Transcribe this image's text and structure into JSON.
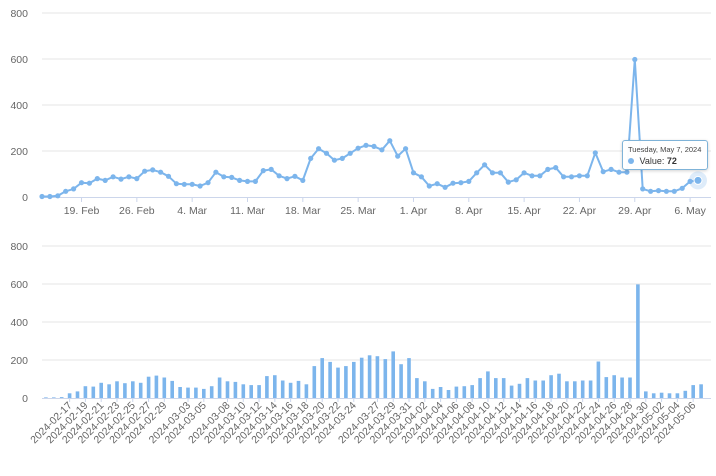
{
  "colors": {
    "series": "#7cb5ec",
    "grid": "#e6e6e6",
    "axis": "#ccd6eb",
    "text": "#666666"
  },
  "tooltip": {
    "date": "Tuesday, May 7, 2024",
    "label": "Value:",
    "value": "72"
  },
  "chart_data": [
    {
      "type": "line",
      "ylim": [
        0,
        800
      ],
      "yticks": [
        0,
        200,
        400,
        600,
        800
      ],
      "x_start": "2024-02-14",
      "x_end": "2024-05-07",
      "xtick_dates": [
        "2024-02-19",
        "2024-02-26",
        "2024-03-04",
        "2024-03-11",
        "2024-03-18",
        "2024-03-25",
        "2024-04-01",
        "2024-04-08",
        "2024-04-15",
        "2024-04-22",
        "2024-04-29",
        "2024-05-06"
      ],
      "xtick_labels": [
        "19. Feb",
        "26. Feb",
        "4. Mar",
        "11. Mar",
        "18. Mar",
        "25. Mar",
        "1. Apr",
        "8. Apr",
        "15. Apr",
        "22. Apr",
        "29. Apr",
        "6. May"
      ],
      "series": [
        {
          "x": [
            "2024-02-14",
            "2024-02-15",
            "2024-02-16",
            "2024-02-17",
            "2024-02-18",
            "2024-02-19",
            "2024-02-20",
            "2024-02-21",
            "2024-02-22",
            "2024-02-23",
            "2024-02-24",
            "2024-02-25",
            "2024-02-26",
            "2024-02-27",
            "2024-02-28",
            "2024-02-29",
            "2024-03-01",
            "2024-03-02",
            "2024-03-03",
            "2024-03-04",
            "2024-03-05",
            "2024-03-06",
            "2024-03-07",
            "2024-03-08",
            "2024-03-09",
            "2024-03-10",
            "2024-03-11",
            "2024-03-12",
            "2024-03-13",
            "2024-03-14",
            "2024-03-15",
            "2024-03-16",
            "2024-03-17",
            "2024-03-18",
            "2024-03-19",
            "2024-03-20",
            "2024-03-21",
            "2024-03-22",
            "2024-03-23",
            "2024-03-24",
            "2024-03-25",
            "2024-03-26",
            "2024-03-27",
            "2024-03-28",
            "2024-03-29",
            "2024-03-30",
            "2024-03-31",
            "2024-04-01",
            "2024-04-02",
            "2024-04-03",
            "2024-04-04",
            "2024-04-05",
            "2024-04-06",
            "2024-04-07",
            "2024-04-08",
            "2024-04-09",
            "2024-04-10",
            "2024-04-11",
            "2024-04-12",
            "2024-04-13",
            "2024-04-14",
            "2024-04-15",
            "2024-04-16",
            "2024-04-17",
            "2024-04-18",
            "2024-04-19",
            "2024-04-20",
            "2024-04-21",
            "2024-04-22",
            "2024-04-23",
            "2024-04-24",
            "2024-04-25",
            "2024-04-26",
            "2024-04-27",
            "2024-04-28",
            "2024-04-29",
            "2024-04-30",
            "2024-05-01",
            "2024-05-02",
            "2024-05-03",
            "2024-05-04",
            "2024-05-05",
            "2024-05-06",
            "2024-05-07"
          ],
          "values": [
            2,
            2,
            5,
            25,
            35,
            62,
            60,
            80,
            72,
            88,
            78,
            88,
            80,
            112,
            118,
            108,
            90,
            58,
            55,
            55,
            48,
            62,
            108,
            88,
            85,
            72,
            68,
            68,
            115,
            120,
            92,
            80,
            90,
            72,
            168,
            210,
            190,
            160,
            168,
            190,
            212,
            225,
            220,
            205,
            245,
            178,
            210,
            105,
            88,
            48,
            58,
            42,
            60,
            62,
            68,
            105,
            140,
            105,
            105,
            65,
            75,
            105,
            92,
            92,
            120,
            128,
            88,
            88,
            92,
            92,
            192,
            110,
            120,
            108,
            108,
            598,
            35,
            25,
            28,
            25,
            25,
            38,
            68,
            72
          ]
        }
      ]
    },
    {
      "type": "bar",
      "ylim": [
        0,
        800
      ],
      "yticks": [
        0,
        200,
        400,
        600,
        800
      ],
      "categories": [
        "2024-02-14",
        "2024-02-15",
        "2024-02-16",
        "2024-02-17",
        "2024-02-18",
        "2024-02-19",
        "2024-02-20",
        "2024-02-21",
        "2024-02-22",
        "2024-02-23",
        "2024-02-24",
        "2024-02-25",
        "2024-02-26",
        "2024-02-27",
        "2024-02-28",
        "2024-02-29",
        "2024-03-01",
        "2024-03-02",
        "2024-03-03",
        "2024-03-04",
        "2024-03-05",
        "2024-03-06",
        "2024-03-07",
        "2024-03-08",
        "2024-03-09",
        "2024-03-10",
        "2024-03-11",
        "2024-03-12",
        "2024-03-13",
        "2024-03-14",
        "2024-03-15",
        "2024-03-16",
        "2024-03-17",
        "2024-03-18",
        "2024-03-19",
        "2024-03-20",
        "2024-03-21",
        "2024-03-22",
        "2024-03-23",
        "2024-03-24",
        "2024-03-25",
        "2024-03-26",
        "2024-03-27",
        "2024-03-28",
        "2024-03-29",
        "2024-03-30",
        "2024-03-31",
        "2024-04-01",
        "2024-04-02",
        "2024-04-03",
        "2024-04-04",
        "2024-04-05",
        "2024-04-06",
        "2024-04-07",
        "2024-04-08",
        "2024-04-09",
        "2024-04-10",
        "2024-04-11",
        "2024-04-12",
        "2024-04-13",
        "2024-04-14",
        "2024-04-15",
        "2024-04-16",
        "2024-04-17",
        "2024-04-18",
        "2024-04-19",
        "2024-04-20",
        "2024-04-21",
        "2024-04-22",
        "2024-04-23",
        "2024-04-24",
        "2024-04-25",
        "2024-04-26",
        "2024-04-27",
        "2024-04-28",
        "2024-04-29",
        "2024-04-30",
        "2024-05-01",
        "2024-05-02",
        "2024-05-03",
        "2024-05-04",
        "2024-05-05",
        "2024-05-06",
        "2024-05-07"
      ],
      "values": [
        2,
        2,
        5,
        25,
        35,
        62,
        60,
        80,
        72,
        88,
        78,
        88,
        80,
        112,
        118,
        108,
        90,
        58,
        55,
        55,
        48,
        62,
        108,
        88,
        85,
        72,
        68,
        68,
        115,
        120,
        92,
        80,
        90,
        72,
        168,
        210,
        190,
        160,
        168,
        190,
        212,
        225,
        220,
        205,
        245,
        178,
        210,
        105,
        88,
        48,
        58,
        42,
        60,
        62,
        68,
        105,
        140,
        105,
        105,
        65,
        75,
        105,
        92,
        92,
        120,
        128,
        88,
        88,
        92,
        92,
        192,
        110,
        120,
        108,
        108,
        598,
        35,
        25,
        28,
        25,
        25,
        38,
        68,
        72
      ],
      "xtick_labels": [
        "2024-02-17",
        "2024-02-19",
        "2024-02-21",
        "2024-02-23",
        "2024-02-25",
        "2024-02-27",
        "2024-02-29",
        "2024-03-03",
        "2024-03-05",
        "2024-03-08",
        "2024-03-10",
        "2024-03-12",
        "2024-03-14",
        "2024-03-16",
        "2024-03-18",
        "2024-03-20",
        "2024-03-22",
        "2024-03-24",
        "2024-03-27",
        "2024-03-29",
        "2024-03-31",
        "2024-04-02",
        "2024-04-04",
        "2024-04-06",
        "2024-04-08",
        "2024-04-10",
        "2024-04-12",
        "2024-04-14",
        "2024-04-16",
        "2024-04-18",
        "2024-04-20",
        "2024-04-22",
        "2024-04-24",
        "2024-04-26",
        "2024-04-28",
        "2024-04-30",
        "2024-05-02",
        "2024-05-04",
        "2024-05-06"
      ]
    }
  ]
}
